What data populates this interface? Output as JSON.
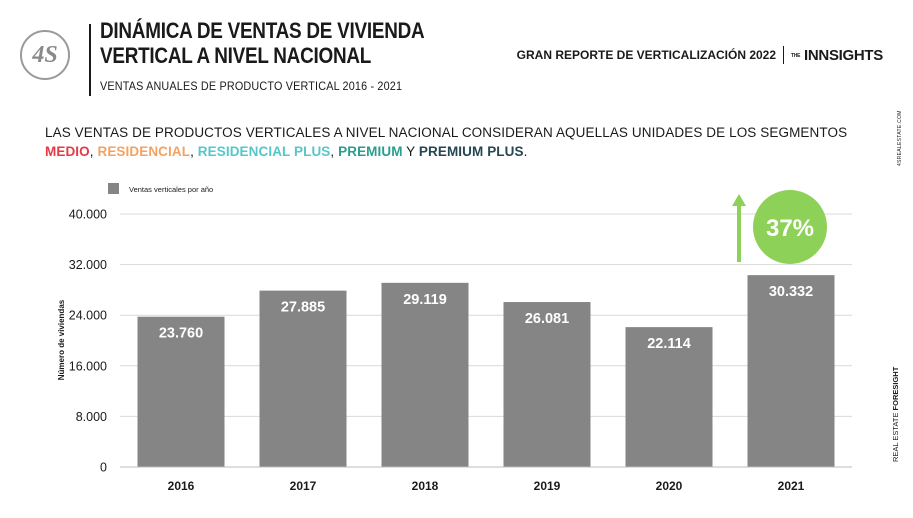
{
  "header": {
    "logo_text": "4S",
    "title_line1": "DINÁMICA DE VENTAS DE VIVIENDA",
    "title_line2": "VERTICAL A NIVEL NACIONAL",
    "subtitle": "VENTAS ANUALES DE PRODUCTO VERTICAL 2016 - 2021",
    "report_label": "GRAN REPORTE DE VERTICALIZACIÓN 2022",
    "brand_prefix": "THE",
    "brand_name": "INNSIGHTS"
  },
  "intro": {
    "text": "LAS VENTAS DE PRODUCTOS VERTICALES A NIVEL NACIONAL CONSIDERAN AQUELLAS UNIDADES DE LOS SEGMENTOS",
    "segments": [
      {
        "label": "MEDIO",
        "color": "#e63946"
      },
      {
        "label": "RESIDENCIAL",
        "color": "#f4a261"
      },
      {
        "label": "RESIDENCIAL PLUS",
        "color": "#56c7c9"
      },
      {
        "label": "PREMIUM",
        "color": "#2a9d8f"
      },
      {
        "label": "PREMIUM PLUS",
        "color": "#264653"
      }
    ],
    "sep1": ", ",
    "sep2": ", ",
    "sep3": ", ",
    "conj": " Y ",
    "end": "."
  },
  "side": {
    "top_text": "4SREALESTATE.COM",
    "bottom_plain": "REAL ESTATE ",
    "bottom_bold": "FORESIGHT"
  },
  "chart_data": {
    "type": "bar",
    "categories": [
      "2016",
      "2017",
      "2018",
      "2019",
      "2020",
      "2021"
    ],
    "series": [
      {
        "name": "Ventas verticales por año",
        "values": [
          23760,
          27885,
          29119,
          26081,
          22114,
          30332
        ]
      }
    ],
    "value_labels": [
      "23.760",
      "27.885",
      "29.119",
      "26.081",
      "22.114",
      "30.332"
    ],
    "ylabel": "Número de viviendas",
    "xlabel": "",
    "ylim": [
      0,
      40000
    ],
    "yticks": [
      0,
      8000,
      16000,
      24000,
      32000,
      40000
    ],
    "ytick_labels": [
      "0",
      "8.000",
      "16.000",
      "24.000",
      "32.000",
      "40.000"
    ],
    "grid": true,
    "legend_position": "top-left",
    "bar_color": "#858585",
    "annotation": {
      "text": "37%",
      "color": "#8ed158"
    }
  }
}
